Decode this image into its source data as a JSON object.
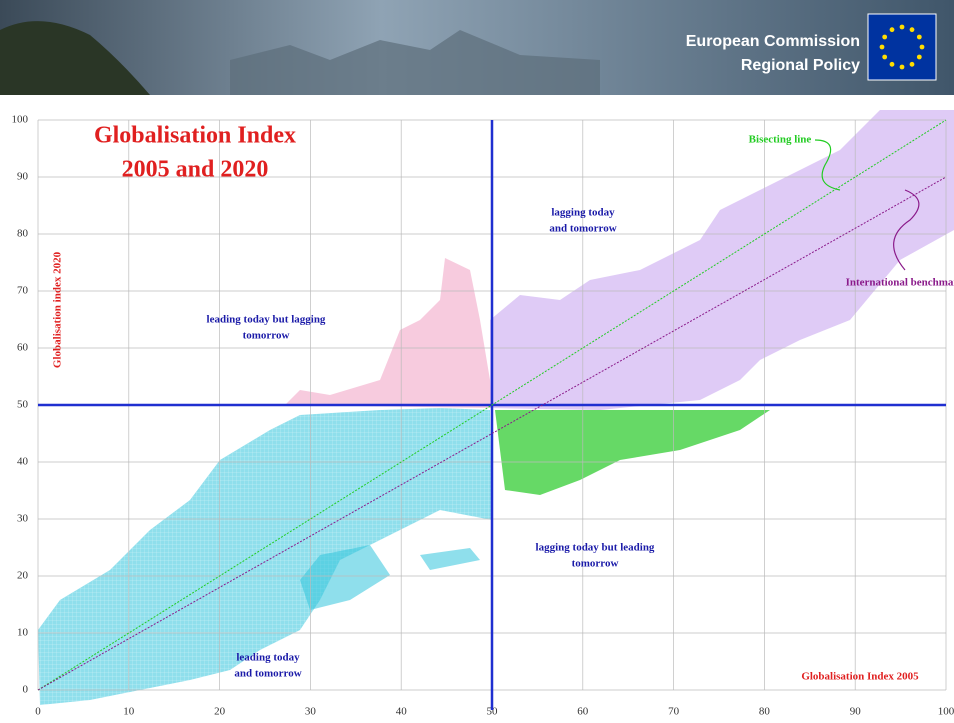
{
  "header": {
    "lines": [
      "European Commission",
      "Regional Policy"
    ]
  },
  "chart_data": {
    "type": "line",
    "title": [
      "Globalisation Index",
      "2005 and 2020"
    ],
    "x_label": "Globalisation Index 2005",
    "y_label": "Globalisation index 2020",
    "xlim": [
      0,
      100
    ],
    "ylim": [
      0,
      100
    ],
    "xticks": [
      0,
      10,
      20,
      30,
      40,
      50,
      60,
      70,
      80,
      90,
      100
    ],
    "yticks": [
      0,
      10,
      20,
      30,
      40,
      50,
      60,
      70,
      80,
      90,
      100
    ],
    "grid": true,
    "reference_lines": {
      "x": 50,
      "y": 50,
      "color": "#1f2fd0"
    },
    "series": [
      {
        "name": "Bisecting line",
        "color": "#22cc22",
        "x": [
          0,
          100
        ],
        "values": [
          0,
          100
        ]
      },
      {
        "name": "International benchmark",
        "color": "#8a1a8a",
        "x": [
          0,
          100
        ],
        "values": [
          0,
          90
        ]
      }
    ],
    "annotations": [
      {
        "lines": [
          "lagging today",
          "and tomorrow"
        ]
      },
      {
        "lines": [
          "leading today but lagging",
          "tomorrow"
        ]
      },
      {
        "lines": [
          "lagging today but leading",
          "tomorrow"
        ]
      },
      {
        "lines": [
          "leading today",
          "and tomorrow"
        ]
      }
    ]
  }
}
